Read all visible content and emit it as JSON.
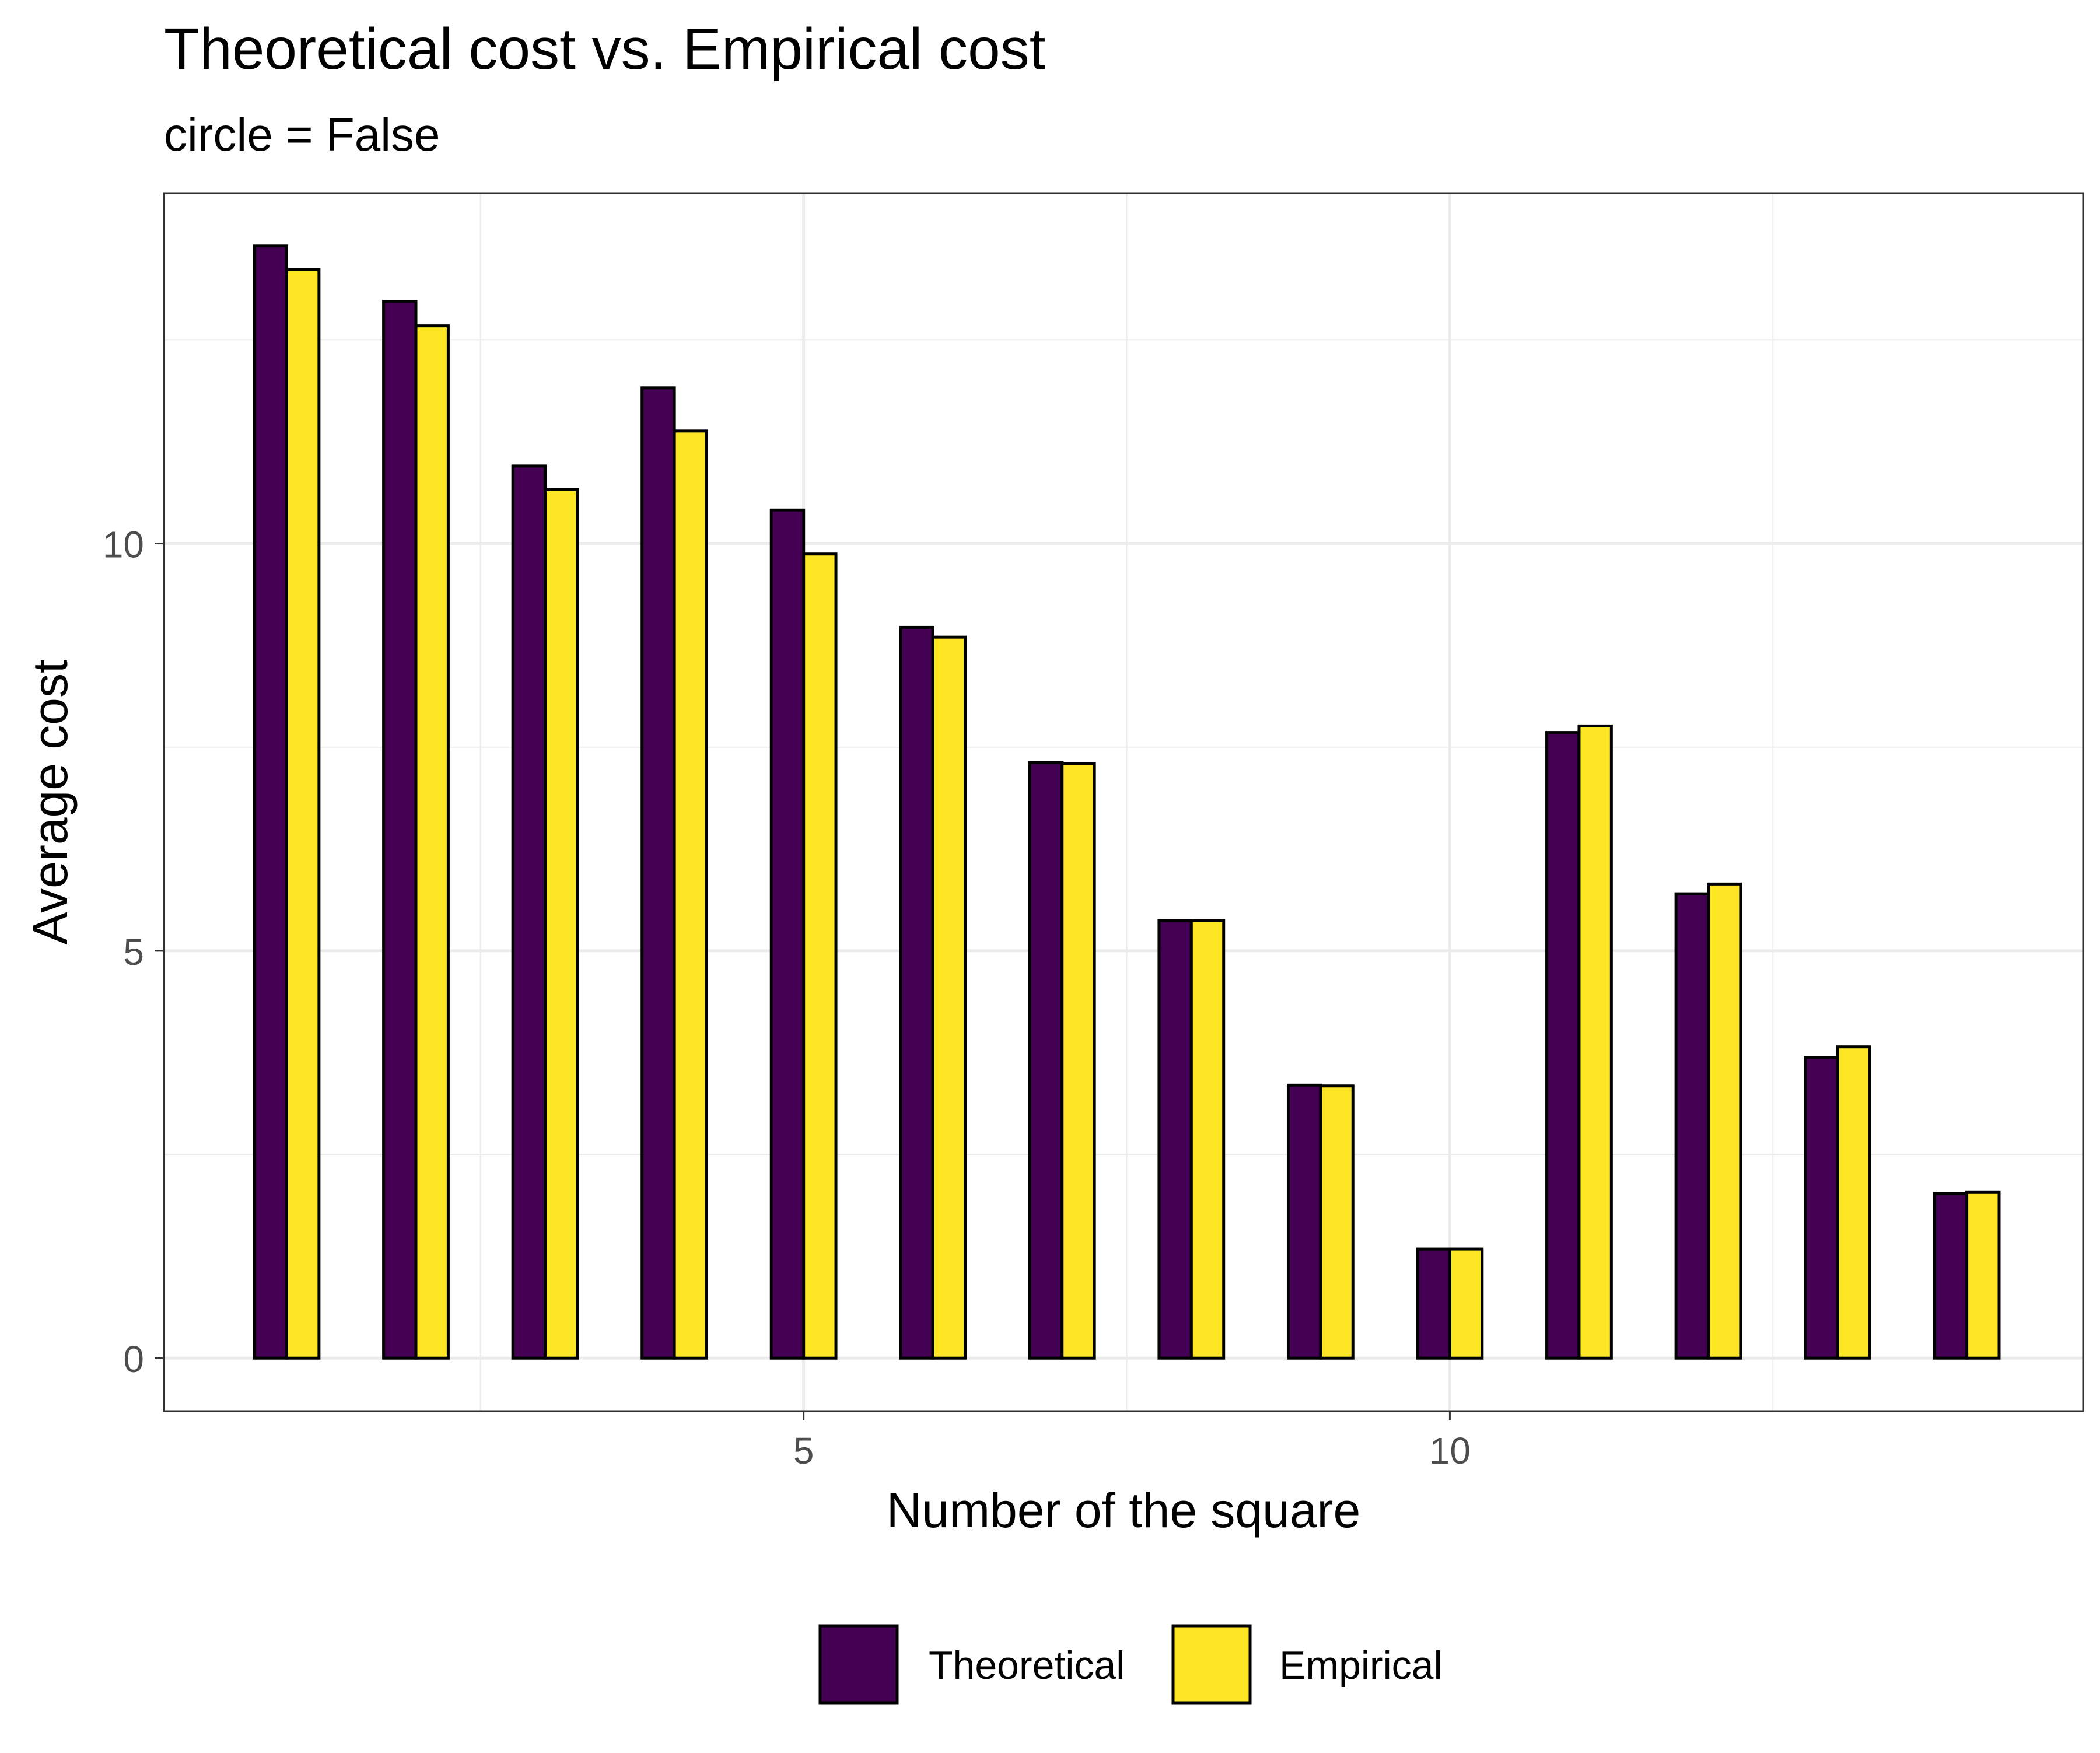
{
  "chart_data": {
    "type": "bar",
    "title": "Theoretical cost vs. Empirical cost",
    "subtitle": "circle = False",
    "xlabel": "Number of the square",
    "ylabel": "Average cost",
    "x": [
      1,
      2,
      3,
      4,
      5,
      6,
      7,
      8,
      9,
      10,
      11,
      12,
      13,
      14
    ],
    "xlim": [
      0.05,
      14.9
    ],
    "ylim": [
      -0.65,
      14.3
    ],
    "x_ticks": [
      5,
      10
    ],
    "x_tick_labels": [
      "5",
      "10"
    ],
    "y_ticks": [
      0,
      5,
      10
    ],
    "y_tick_labels": [
      "0",
      "5",
      "10"
    ],
    "grid": true,
    "legend_position": "bottom",
    "series": [
      {
        "name": "Theoretical",
        "color": "#440154",
        "values": [
          13.65,
          12.97,
          10.95,
          11.91,
          10.41,
          8.97,
          7.31,
          5.37,
          3.35,
          1.34,
          7.68,
          5.7,
          3.69,
          2.02
        ]
      },
      {
        "name": "Empirical",
        "color": "#FDE725",
        "values": [
          13.36,
          12.67,
          10.66,
          11.38,
          9.87,
          8.85,
          7.3,
          5.37,
          3.34,
          1.34,
          7.76,
          5.82,
          3.82,
          2.04
        ]
      }
    ]
  }
}
